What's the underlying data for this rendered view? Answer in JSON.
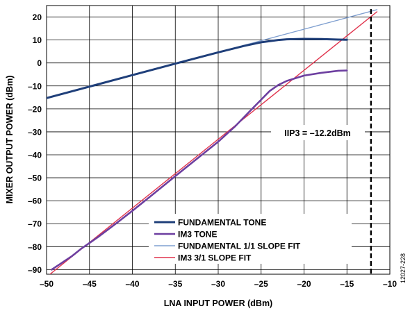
{
  "chart_data": {
    "type": "line",
    "xlabel": "LNA INPUT POWER (dBm)",
    "ylabel": "MIXER OUTPUT POWER (dBm)",
    "xlim": [
      -50,
      -10
    ],
    "ylim": [
      -92,
      25
    ],
    "x_ticks": [
      -50,
      -45,
      -40,
      -35,
      -30,
      -25,
      -20,
      -15,
      -10
    ],
    "y_ticks": [
      20,
      10,
      0,
      -10,
      -20,
      -30,
      -40,
      -50,
      -60,
      -70,
      -80,
      -90
    ],
    "x_tick_labels": [
      "–50",
      "–45",
      "–40",
      "–35",
      "–30",
      "–25",
      "–20",
      "–15",
      "–10"
    ],
    "y_tick_labels": [
      "20",
      "10",
      "0",
      "–10",
      "–20",
      "–30",
      "–40",
      "–50",
      "–60",
      "–70",
      "–80",
      "–90"
    ],
    "grid": true,
    "legend_position": "bottom-center",
    "series": [
      {
        "name": "FUNDAMENTAL TONE",
        "color": "#1f3f7a",
        "x": [
          -50,
          -45,
          -40,
          -35,
          -30,
          -27,
          -25,
          -23,
          -22,
          -20,
          -18,
          -16,
          -15
        ],
        "y": [
          -15.3,
          -10.3,
          -5.3,
          -0.3,
          4.6,
          7.4,
          9.0,
          10.0,
          10.3,
          10.5,
          10.4,
          10.2,
          10.1
        ]
      },
      {
        "name": "IM3 TONE",
        "color": "#6d3fa0",
        "x": [
          -49.4,
          -48.6,
          -48,
          -47,
          -46,
          -44,
          -42,
          -40,
          -38,
          -35,
          -32,
          -30,
          -28,
          -26,
          -25,
          -24,
          -23,
          -22,
          -20,
          -18,
          -16,
          -15
        ],
        "y": [
          -90,
          -88,
          -86.5,
          -84,
          -81,
          -75.8,
          -70.2,
          -64.4,
          -58.4,
          -49.3,
          -40.3,
          -34.3,
          -27.5,
          -19.8,
          -16,
          -12.2,
          -9.6,
          -7.8,
          -5.5,
          -4.3,
          -3.4,
          -3.3
        ]
      },
      {
        "name": "FUNDAMENTAL 1/1 SLOPE FIT",
        "color": "#7f9fd0",
        "x": [
          -50,
          -11.5
        ],
        "y": [
          -15.3,
          23.2
        ]
      },
      {
        "name": "IM3 3/1 SLOPE FIT",
        "color": "#e0344d",
        "x": [
          -49.6,
          -11.5
        ],
        "y": [
          -92,
          22.3
        ]
      }
    ],
    "iip3_marker_x": -12.2,
    "annotation": "IIP3 = –12.2dBm",
    "figure_id": "12027-228"
  }
}
